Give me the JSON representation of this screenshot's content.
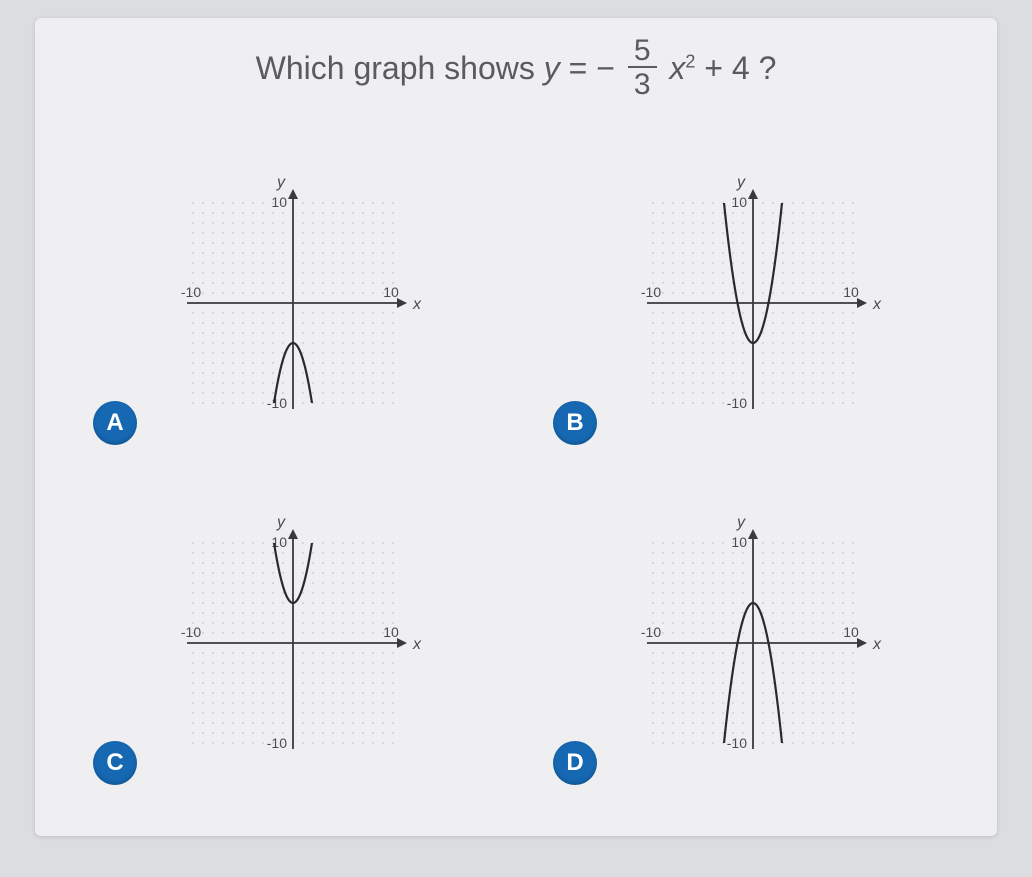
{
  "question": {
    "prefix": "Which graph shows ",
    "y": "y",
    "eq": " = ",
    "neg": "−",
    "frac_num": "5",
    "frac_den": "3",
    "x": "x",
    "sq": "2",
    "suffix": " + 4 ?"
  },
  "graph_style": {
    "xlim": [
      -10,
      10
    ],
    "ylim": [
      -10,
      10
    ],
    "tick_step": 1,
    "axis_color": "#3a3a3e",
    "grid_color": "#d0d0d4",
    "dot_color": "#b5b5ba",
    "bg": "#efeff1",
    "curve_color": "#2a2a2e",
    "curve_width": 2.2,
    "label_color": "#4b4b50",
    "label_fontsize": 16,
    "y_label": "y",
    "x_label": "x",
    "tick_labels": {
      "pos": "10",
      "neg_x": "-10",
      "neg_y": "-10",
      "pos_y": "10"
    }
  },
  "options": [
    {
      "letter": "A",
      "vertex_y": -4,
      "opens": "down",
      "a_abs": 1.6667
    },
    {
      "letter": "B",
      "vertex_y": -4,
      "opens": "up",
      "a_abs": 1.6667
    },
    {
      "letter": "C",
      "vertex_y": 4,
      "opens": "up",
      "a_abs": 1.6667
    },
    {
      "letter": "D",
      "vertex_y": 4,
      "opens": "down",
      "a_abs": 1.6667
    }
  ],
  "badge_style": {
    "bg": "#1668b3",
    "fg": "#ffffff"
  }
}
